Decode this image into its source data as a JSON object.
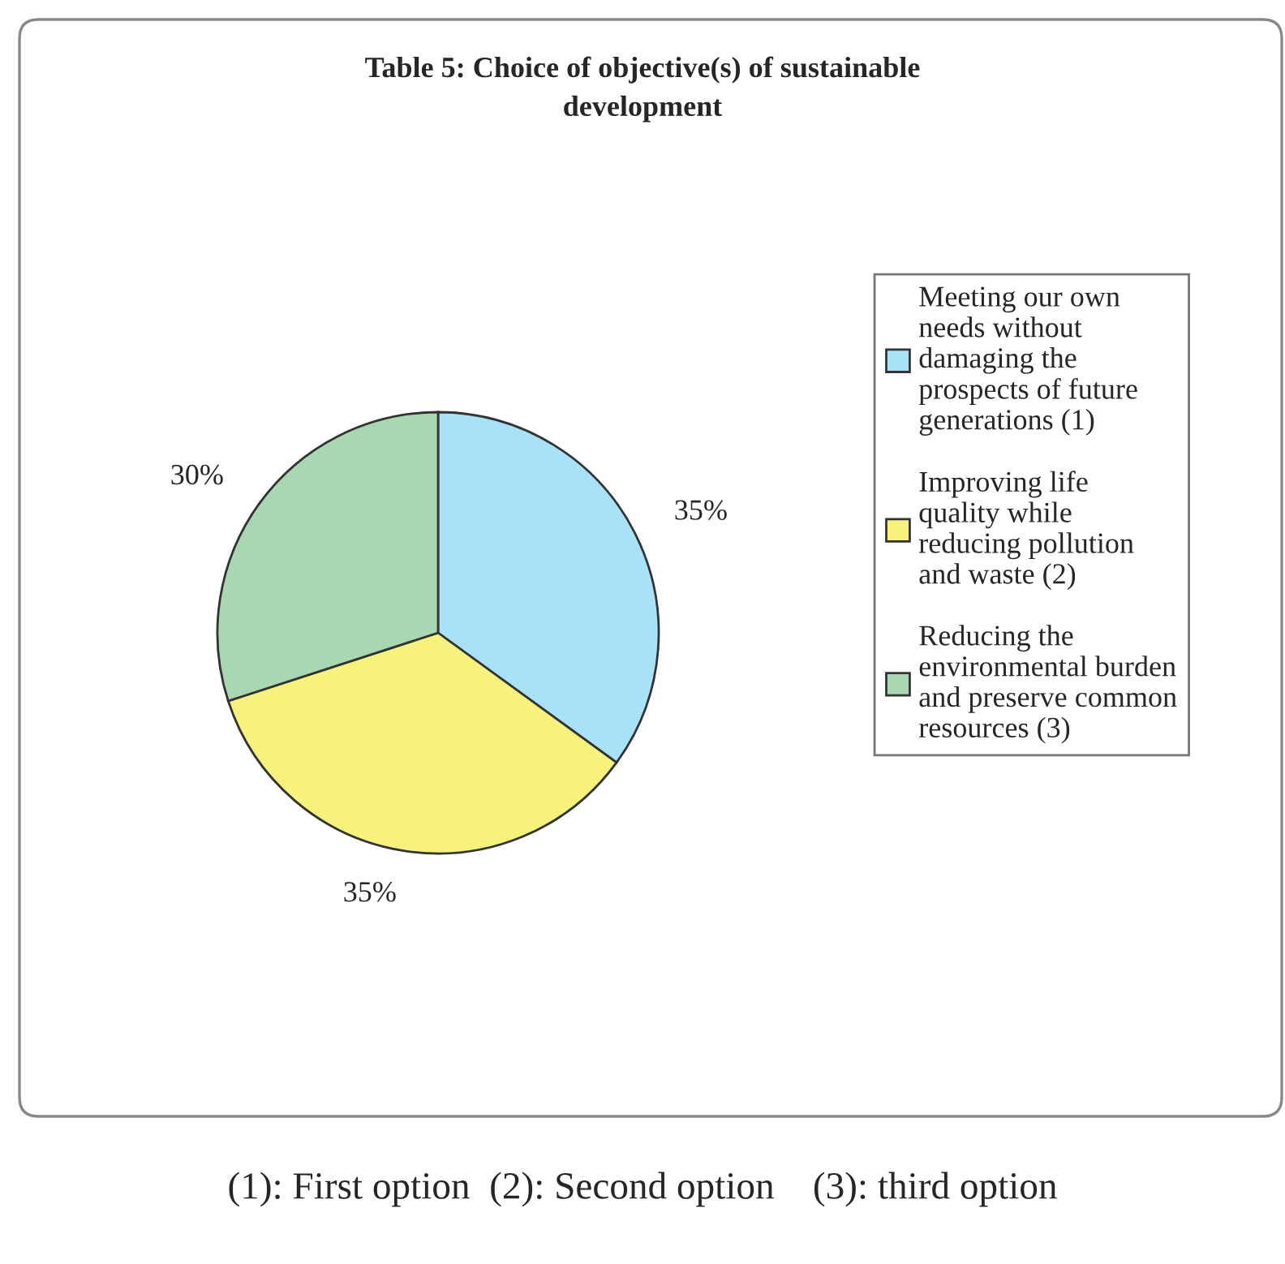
{
  "chart_data": {
    "type": "pie",
    "title": "Table 5: Choice of objective(s) of sustainable development",
    "categories": [
      "Meeting our own needs without damaging the prospects of future generations (1)",
      "Improving life quality while reducing pollution and waste (2)",
      "Reducing the environmental burden and preserve common resources (3)"
    ],
    "values": [
      35,
      35,
      30
    ],
    "colors": [
      "#a8e2f8",
      "#f6f27c",
      "#a8d8b2"
    ],
    "value_labels": [
      "35%",
      "35%",
      "30%"
    ],
    "legend": "right",
    "annotations": [
      "(1): First option  (2): Second option    (3): third option"
    ]
  }
}
